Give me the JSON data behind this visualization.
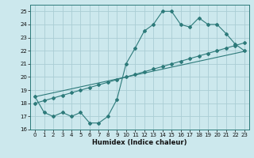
{
  "xlabel": "Humidex (Indice chaleur)",
  "ylabel": "",
  "bg_color": "#cce8ed",
  "grid_color": "#aacdd4",
  "line_color": "#2d7a7a",
  "x": [
    0,
    1,
    2,
    3,
    4,
    5,
    6,
    7,
    8,
    9,
    10,
    11,
    12,
    13,
    14,
    15,
    16,
    17,
    18,
    19,
    20,
    21,
    22,
    23
  ],
  "line1": [
    18.5,
    17.3,
    17.0,
    17.3,
    17.0,
    17.3,
    16.5,
    16.5,
    17.0,
    18.3,
    21.0,
    22.2,
    23.5,
    24.0,
    25.0,
    25.0,
    24.0,
    23.8,
    24.5,
    24.0,
    24.0,
    23.3,
    22.5,
    22.0
  ],
  "line2": [
    18.0,
    18.2,
    18.4,
    18.6,
    18.8,
    19.0,
    19.2,
    19.4,
    19.6,
    19.8,
    20.0,
    20.2,
    20.4,
    20.6,
    20.8,
    21.0,
    21.2,
    21.4,
    21.6,
    21.8,
    22.0,
    22.2,
    22.4,
    22.6
  ],
  "line3": [
    18.5,
    18.65,
    18.8,
    18.95,
    19.1,
    19.25,
    19.4,
    19.55,
    19.7,
    19.85,
    20.0,
    20.15,
    20.3,
    20.45,
    20.6,
    20.75,
    20.9,
    21.05,
    21.2,
    21.35,
    21.5,
    21.65,
    21.8,
    21.95
  ],
  "ylim": [
    16,
    25.5
  ],
  "xlim": [
    -0.5,
    23.5
  ],
  "yticks": [
    16,
    17,
    18,
    19,
    20,
    21,
    22,
    23,
    24,
    25
  ],
  "xticks": [
    0,
    1,
    2,
    3,
    4,
    5,
    6,
    7,
    8,
    9,
    10,
    11,
    12,
    13,
    14,
    15,
    16,
    17,
    18,
    19,
    20,
    21,
    22,
    23
  ]
}
